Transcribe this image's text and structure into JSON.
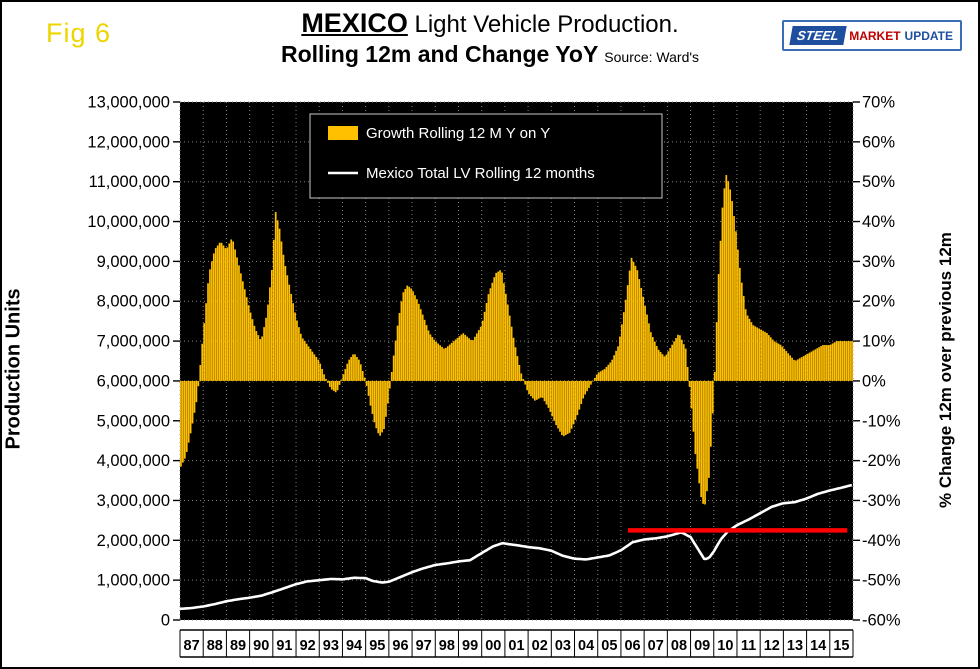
{
  "header": {
    "fig": "Fig 6",
    "title_main": "MEXICO",
    "title_rest": " Light Vehicle Production.",
    "title_line2": "Rolling 12m and Change YoY",
    "source": "Source: Ward's",
    "fig_color": "#EDD500"
  },
  "logo": {
    "steel": "STEEL",
    "market": "MARKET",
    "update": "UPDATE"
  },
  "chart_data": {
    "type": "bar",
    "title": "MEXICO Light Vehicle Production. Rolling 12m and Change YoY",
    "source": "Source: Ward's",
    "plot_bg": "#000000",
    "grid": {
      "show": true,
      "color": "#808080",
      "style": "dotted"
    },
    "x_axis": {
      "domain": [
        1987,
        2016
      ],
      "year_labels": [
        "87",
        "88",
        "89",
        "90",
        "91",
        "92",
        "93",
        "94",
        "95",
        "96",
        "97",
        "98",
        "99",
        "00",
        "01",
        "02",
        "03",
        "04",
        "05",
        "06",
        "07",
        "08",
        "09",
        "10",
        "11",
        "12",
        "13",
        "14",
        "15"
      ]
    },
    "left_axis": {
      "label": "Production Units",
      "min": 0,
      "max": 13000000,
      "step": 1000000
    },
    "right_axis": {
      "label": "% Change 12m over previous 12m",
      "min": -60,
      "max": 70,
      "step": 10,
      "format": "percent"
    },
    "legend": {
      "position": "top-center",
      "items": [
        {
          "label": "Growth Rolling 12 M Y on Y",
          "swatch": "bar",
          "color": "#FFC000"
        },
        {
          "label": "Mexico Total LV Rolling 12 months",
          "swatch": "line",
          "color": "#FFFFFF"
        }
      ]
    },
    "series": [
      {
        "name": "Growth Rolling 12 M Y on Y",
        "type": "bar",
        "axis": "right",
        "color": "#FFC000",
        "unit": "%",
        "points": [
          [
            1987.0,
            -22
          ],
          [
            1987.25,
            -19
          ],
          [
            1987.5,
            -12
          ],
          [
            1987.75,
            -4
          ],
          [
            1988.0,
            12
          ],
          [
            1988.25,
            27
          ],
          [
            1988.5,
            33
          ],
          [
            1988.75,
            35
          ],
          [
            1989.0,
            33
          ],
          [
            1989.25,
            36
          ],
          [
            1989.5,
            30
          ],
          [
            1989.75,
            24
          ],
          [
            1990.0,
            18
          ],
          [
            1990.25,
            13
          ],
          [
            1990.5,
            10
          ],
          [
            1990.75,
            17
          ],
          [
            1991.0,
            30
          ],
          [
            1991.1,
            43
          ],
          [
            1991.3,
            38
          ],
          [
            1991.5,
            30
          ],
          [
            1991.75,
            23
          ],
          [
            1992.0,
            16
          ],
          [
            1992.25,
            11
          ],
          [
            1992.5,
            9
          ],
          [
            1992.75,
            7
          ],
          [
            1993.0,
            5
          ],
          [
            1993.25,
            1
          ],
          [
            1993.5,
            -2
          ],
          [
            1993.75,
            -3
          ],
          [
            1994.0,
            1
          ],
          [
            1994.25,
            5
          ],
          [
            1994.5,
            7
          ],
          [
            1994.75,
            5
          ],
          [
            1995.0,
            0
          ],
          [
            1995.2,
            -6
          ],
          [
            1995.4,
            -11
          ],
          [
            1995.6,
            -14
          ],
          [
            1995.8,
            -12
          ],
          [
            1996.0,
            -4
          ],
          [
            1996.2,
            6
          ],
          [
            1996.4,
            15
          ],
          [
            1996.6,
            22
          ],
          [
            1996.8,
            24
          ],
          [
            1997.0,
            23
          ],
          [
            1997.25,
            20
          ],
          [
            1997.5,
            16
          ],
          [
            1997.75,
            12
          ],
          [
            1998.0,
            10
          ],
          [
            1998.4,
            8
          ],
          [
            1998.8,
            10
          ],
          [
            1999.2,
            12
          ],
          [
            1999.6,
            10
          ],
          [
            2000.0,
            14
          ],
          [
            2000.3,
            22
          ],
          [
            2000.6,
            27
          ],
          [
            2000.85,
            28
          ],
          [
            2001.1,
            20
          ],
          [
            2001.4,
            10
          ],
          [
            2001.7,
            2
          ],
          [
            2002.0,
            -3
          ],
          [
            2002.3,
            -5
          ],
          [
            2002.6,
            -4
          ],
          [
            2002.9,
            -7
          ],
          [
            2003.2,
            -11
          ],
          [
            2003.5,
            -14
          ],
          [
            2003.8,
            -13
          ],
          [
            2004.1,
            -9
          ],
          [
            2004.4,
            -4
          ],
          [
            2004.7,
            -1
          ],
          [
            2005.0,
            2
          ],
          [
            2005.3,
            3
          ],
          [
            2005.6,
            5
          ],
          [
            2005.9,
            9
          ],
          [
            2006.2,
            20
          ],
          [
            2006.45,
            31
          ],
          [
            2006.7,
            28
          ],
          [
            2007.0,
            20
          ],
          [
            2007.3,
            12
          ],
          [
            2007.6,
            8
          ],
          [
            2007.9,
            6
          ],
          [
            2008.2,
            9
          ],
          [
            2008.5,
            12
          ],
          [
            2008.8,
            8
          ],
          [
            2009.0,
            -4
          ],
          [
            2009.2,
            -18
          ],
          [
            2009.45,
            -29
          ],
          [
            2009.6,
            -32
          ],
          [
            2009.8,
            -24
          ],
          [
            2010.0,
            -4
          ],
          [
            2010.2,
            26
          ],
          [
            2010.4,
            46
          ],
          [
            2010.55,
            52
          ],
          [
            2010.75,
            47
          ],
          [
            2010.95,
            38
          ],
          [
            2011.15,
            27
          ],
          [
            2011.4,
            17
          ],
          [
            2011.7,
            14
          ],
          [
            2012.0,
            13
          ],
          [
            2012.3,
            12
          ],
          [
            2012.6,
            10
          ],
          [
            2012.9,
            9
          ],
          [
            2013.2,
            7
          ],
          [
            2013.5,
            5
          ],
          [
            2013.8,
            6
          ],
          [
            2014.1,
            7
          ],
          [
            2014.4,
            8
          ],
          [
            2014.7,
            9
          ],
          [
            2015.0,
            9
          ],
          [
            2015.3,
            10
          ],
          [
            2015.6,
            10
          ],
          [
            2015.92,
            10
          ]
        ]
      },
      {
        "name": "Mexico Total LV Rolling 12 months",
        "type": "line",
        "axis": "left",
        "color": "#FFFFFF",
        "unit": "units",
        "points": [
          [
            1987.0,
            280000
          ],
          [
            1987.5,
            300000
          ],
          [
            1988.0,
            340000
          ],
          [
            1988.5,
            400000
          ],
          [
            1989.0,
            470000
          ],
          [
            1989.5,
            520000
          ],
          [
            1990.0,
            560000
          ],
          [
            1990.5,
            610000
          ],
          [
            1991.0,
            700000
          ],
          [
            1991.5,
            800000
          ],
          [
            1992.0,
            900000
          ],
          [
            1992.5,
            970000
          ],
          [
            1993.0,
            1000000
          ],
          [
            1993.5,
            1030000
          ],
          [
            1994.0,
            1020000
          ],
          [
            1994.5,
            1060000
          ],
          [
            1995.0,
            1050000
          ],
          [
            1995.3,
            980000
          ],
          [
            1995.7,
            940000
          ],
          [
            1996.0,
            960000
          ],
          [
            1996.5,
            1080000
          ],
          [
            1997.0,
            1200000
          ],
          [
            1997.5,
            1300000
          ],
          [
            1998.0,
            1380000
          ],
          [
            1998.5,
            1420000
          ],
          [
            1999.0,
            1470000
          ],
          [
            1999.5,
            1500000
          ],
          [
            2000.0,
            1680000
          ],
          [
            2000.5,
            1850000
          ],
          [
            2000.9,
            1930000
          ],
          [
            2001.2,
            1900000
          ],
          [
            2001.6,
            1870000
          ],
          [
            2002.0,
            1830000
          ],
          [
            2002.5,
            1800000
          ],
          [
            2003.0,
            1740000
          ],
          [
            2003.5,
            1610000
          ],
          [
            2004.0,
            1540000
          ],
          [
            2004.5,
            1520000
          ],
          [
            2005.0,
            1570000
          ],
          [
            2005.5,
            1620000
          ],
          [
            2006.0,
            1750000
          ],
          [
            2006.5,
            1950000
          ],
          [
            2007.0,
            2020000
          ],
          [
            2007.5,
            2050000
          ],
          [
            2008.0,
            2100000
          ],
          [
            2008.6,
            2200000
          ],
          [
            2009.0,
            2080000
          ],
          [
            2009.3,
            1800000
          ],
          [
            2009.6,
            1520000
          ],
          [
            2009.8,
            1560000
          ],
          [
            2010.0,
            1720000
          ],
          [
            2010.3,
            2020000
          ],
          [
            2010.6,
            2220000
          ],
          [
            2011.0,
            2380000
          ],
          [
            2011.5,
            2520000
          ],
          [
            2012.0,
            2680000
          ],
          [
            2012.5,
            2840000
          ],
          [
            2013.0,
            2930000
          ],
          [
            2013.5,
            2960000
          ],
          [
            2014.0,
            3050000
          ],
          [
            2014.5,
            3170000
          ],
          [
            2015.0,
            3250000
          ],
          [
            2015.5,
            3320000
          ],
          [
            2015.92,
            3380000
          ]
        ]
      },
      {
        "name": "reference line",
        "type": "hline",
        "axis": "left",
        "color": "#FF0000",
        "value": 2250000,
        "x_start": 2006.3,
        "x_end": 2015.75
      }
    ]
  }
}
